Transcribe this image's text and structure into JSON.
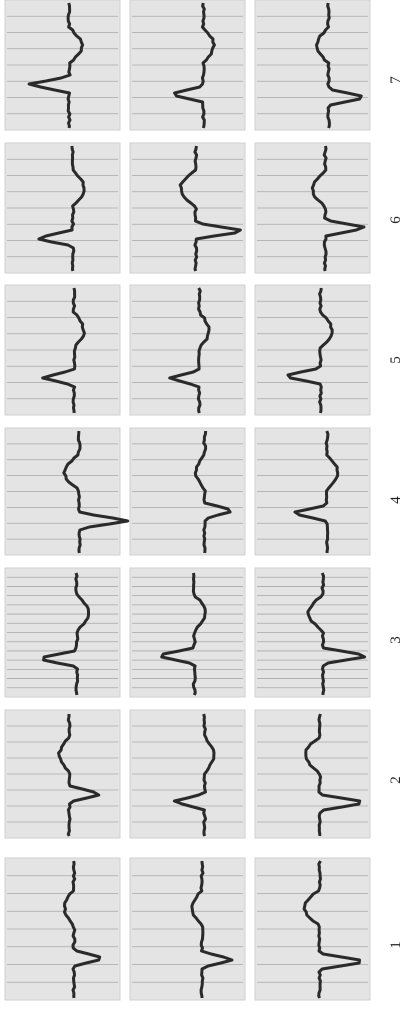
{
  "figure": {
    "labels": [
      "1",
      "2",
      "3",
      "4",
      "5",
      "6",
      "7"
    ]
  }
}
